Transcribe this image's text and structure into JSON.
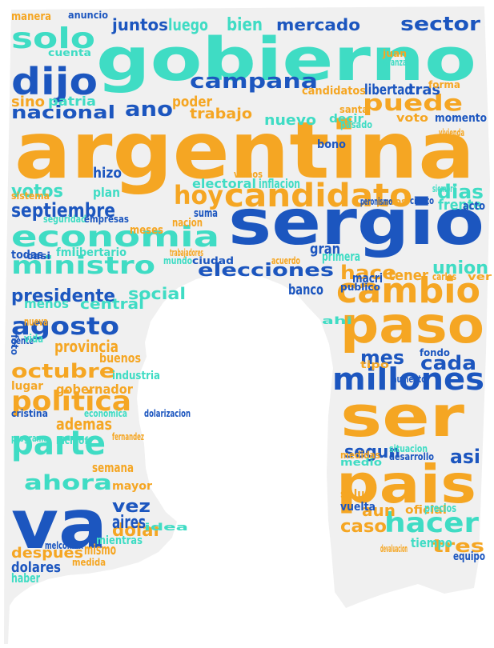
{
  "colors": {
    "background": "#ffffff",
    "silhouette": "#f0f0f0",
    "orange": "#f5a623",
    "turquoise": "#3fdcc4",
    "blue": "#1c56bf"
  },
  "words": [
    {
      "text": "argentina",
      "color": "orange"
    },
    {
      "text": "gobierno",
      "color": "turquoise"
    },
    {
      "text": "sergio",
      "color": "blue"
    },
    {
      "text": "ser",
      "color": "orange"
    },
    {
      "text": "pais",
      "color": "orange"
    },
    {
      "text": "va",
      "color": "blue"
    },
    {
      "text": "paso",
      "color": "orange"
    },
    {
      "text": "candidato",
      "color": "orange"
    },
    {
      "text": "economia",
      "color": "turquoise"
    },
    {
      "text": "cambio",
      "color": "orange"
    },
    {
      "text": "millones",
      "color": "blue"
    },
    {
      "text": "parte",
      "color": "turquoise"
    },
    {
      "text": "politica",
      "color": "orange"
    },
    {
      "text": "ministro",
      "color": "turquoise"
    },
    {
      "text": "agosto",
      "color": "blue"
    },
    {
      "text": "hacer",
      "color": "turquoise"
    },
    {
      "text": "elecciones",
      "color": "blue"
    },
    {
      "text": "campana",
      "color": "blue"
    },
    {
      "text": "dijo",
      "color": "blue"
    },
    {
      "text": "solo",
      "color": "turquoise"
    },
    {
      "text": "puede",
      "color": "orange"
    },
    {
      "text": "hoy",
      "color": "orange"
    },
    {
      "text": "nacional",
      "color": "blue"
    },
    {
      "text": "septiembre",
      "color": "blue"
    },
    {
      "text": "octubre",
      "color": "orange"
    },
    {
      "text": "presidente",
      "color": "blue"
    },
    {
      "text": "ahora",
      "color": "turquoise"
    },
    {
      "text": "mercado",
      "color": "blue"
    },
    {
      "text": "sector",
      "color": "blue"
    },
    {
      "text": "votos",
      "color": "turquoise"
    },
    {
      "text": "dias",
      "color": "turquoise"
    },
    {
      "text": "cada",
      "color": "blue"
    },
    {
      "text": "mes",
      "color": "blue"
    },
    {
      "text": "ano",
      "color": "blue"
    },
    {
      "text": "hace",
      "color": "orange"
    },
    {
      "text": "segun",
      "color": "blue"
    },
    {
      "text": "asi",
      "color": "blue"
    },
    {
      "text": "tres",
      "color": "orange"
    },
    {
      "text": "dolar",
      "color": "orange"
    },
    {
      "text": "vez",
      "color": "blue"
    },
    {
      "text": "ademas",
      "color": "orange"
    },
    {
      "text": "despues",
      "color": "orange"
    },
    {
      "text": "union",
      "color": "turquoise"
    },
    {
      "text": "tener",
      "color": "orange"
    },
    {
      "text": "frente",
      "color": "turquoise"
    },
    {
      "text": "provincia",
      "color": "orange"
    },
    {
      "text": "caso",
      "color": "orange"
    },
    {
      "text": "aun",
      "color": "orange"
    },
    {
      "text": "juntos",
      "color": "blue"
    },
    {
      "text": "luego",
      "color": "turquoise"
    },
    {
      "text": "bien",
      "color": "turquoise"
    },
    {
      "text": "nuevo",
      "color": "turquoise"
    },
    {
      "text": "trabajo",
      "color": "orange"
    },
    {
      "text": "poder",
      "color": "orange"
    },
    {
      "text": "libertad",
      "color": "blue"
    },
    {
      "text": "candidatos",
      "color": "orange"
    },
    {
      "text": "tras",
      "color": "blue"
    },
    {
      "text": "voto",
      "color": "orange"
    },
    {
      "text": "momento",
      "color": "blue"
    },
    {
      "text": "decir",
      "color": "turquoise"
    },
    {
      "text": "electoral",
      "color": "turquoise"
    },
    {
      "text": "inflacion",
      "color": "turquoise"
    },
    {
      "text": "hizo",
      "color": "blue"
    },
    {
      "text": "plan",
      "color": "turquoise"
    },
    {
      "text": "bono",
      "color": "blue"
    },
    {
      "text": "meses",
      "color": "orange"
    },
    {
      "text": "suma",
      "color": "blue"
    },
    {
      "text": "nacion",
      "color": "orange"
    },
    {
      "text": "patria",
      "color": "turquoise"
    },
    {
      "text": "sino",
      "color": "orange"
    },
    {
      "text": "manera",
      "color": "orange"
    },
    {
      "text": "anuncio",
      "color": "blue"
    },
    {
      "text": "acto",
      "color": "blue"
    },
    {
      "text": "pesos",
      "color": "orange"
    },
    {
      "text": "social",
      "color": "turquoise"
    },
    {
      "text": "gente",
      "color": "blue"
    },
    {
      "text": "foto",
      "color": "blue"
    },
    {
      "text": "industria",
      "color": "turquoise"
    },
    {
      "text": "buenos",
      "color": "orange"
    },
    {
      "text": "aires",
      "color": "blue"
    },
    {
      "text": "gobernador",
      "color": "orange"
    },
    {
      "text": "lugar",
      "color": "orange"
    },
    {
      "text": "mismo",
      "color": "orange"
    },
    {
      "text": "dolares",
      "color": "blue"
    },
    {
      "text": "haber",
      "color": "turquoise"
    },
    {
      "text": "semana",
      "color": "orange"
    },
    {
      "text": "mayor",
      "color": "orange"
    },
    {
      "text": "oficial",
      "color": "orange"
    },
    {
      "text": "tiempo",
      "color": "turquoise"
    },
    {
      "text": "equipo",
      "color": "blue"
    },
    {
      "text": "medidas",
      "color": "orange"
    },
    {
      "text": "vamos",
      "color": "orange"
    },
    {
      "text": "fmi",
      "color": "turquoise"
    },
    {
      "text": "casi",
      "color": "blue"
    },
    {
      "text": "libertario",
      "color": "turquoise"
    },
    {
      "text": "banco",
      "color": "blue"
    },
    {
      "text": "macri",
      "color": "blue"
    },
    {
      "text": "primera",
      "color": "turquoise"
    },
    {
      "text": "gran",
      "color": "blue"
    },
    {
      "text": "vida",
      "color": "turquoise"
    },
    {
      "text": "central",
      "color": "turquoise"
    },
    {
      "text": "menos",
      "color": "turquoise"
    },
    {
      "text": "kicillof",
      "color": "turquoise"
    },
    {
      "text": "cristina",
      "color": "blue"
    },
    {
      "text": "situacion",
      "color": "turquoise"
    },
    {
      "text": "vuelta",
      "color": "blue"
    },
    {
      "text": "salud",
      "color": "orange"
    },
    {
      "text": "precios",
      "color": "turquoise"
    },
    {
      "text": "mientras",
      "color": "turquoise"
    },
    {
      "text": "todas",
      "color": "blue"
    },
    {
      "text": "santa",
      "color": "orange"
    },
    {
      "text": "seguridad",
      "color": "turquoise"
    },
    {
      "text": "empresas",
      "color": "blue"
    },
    {
      "text": "trabajadores",
      "color": "orange"
    },
    {
      "text": "mundo",
      "color": "turquoise"
    },
    {
      "text": "ciudad",
      "color": "blue"
    },
    {
      "text": "acuerdo",
      "color": "orange"
    },
    {
      "text": "avanza",
      "color": "turquoise"
    },
    {
      "text": "juan",
      "color": "orange"
    },
    {
      "text": "carlos",
      "color": "orange"
    },
    {
      "text": "tipo",
      "color": "orange"
    },
    {
      "text": "fondo",
      "color": "blue"
    },
    {
      "text": "aumento",
      "color": "blue"
    },
    {
      "text": "ciento",
      "color": "blue"
    },
    {
      "text": "ver",
      "color": "orange"
    },
    {
      "text": "medio",
      "color": "turquoise"
    },
    {
      "text": "desarrollo",
      "color": "blue"
    },
    {
      "text": "devaluacion",
      "color": "orange"
    },
    {
      "text": "medida",
      "color": "orange"
    },
    {
      "text": "forma",
      "color": "orange"
    },
    {
      "text": "cuenta",
      "color": "turquoise"
    },
    {
      "text": "peronismo",
      "color": "blue"
    },
    {
      "text": "sistema",
      "color": "orange"
    },
    {
      "text": "programa",
      "color": "turquoise"
    },
    {
      "text": "economica",
      "color": "turquoise"
    },
    {
      "text": "dolarizacion",
      "color": "blue"
    },
    {
      "text": "melconian",
      "color": "blue"
    },
    {
      "text": "fernandez",
      "color": "orange"
    },
    {
      "text": "publico",
      "color": "blue"
    },
    {
      "text": "siempre",
      "color": "turquoise"
    },
    {
      "text": "nueva",
      "color": "orange"
    },
    {
      "text": "ahi",
      "color": "turquoise"
    },
    {
      "text": "pasado",
      "color": "turquoise"
    },
    {
      "text": "vivienda",
      "color": "orange"
    },
    {
      "text": "idea",
      "color": "turquoise"
    },
    {
      "text": "gobernadores",
      "color": "orange"
    }
  ]
}
